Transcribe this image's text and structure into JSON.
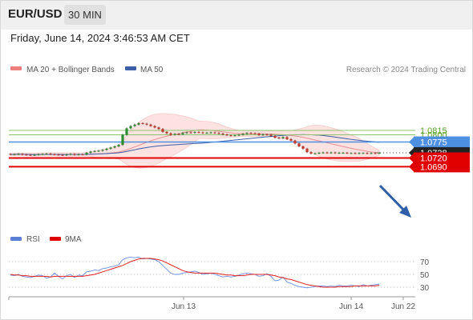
{
  "header": {
    "symbol": "EUR/USD",
    "timeframe": "30 MIN",
    "datetime": "Friday, June 14, 2024 3:46:53 AM CET"
  },
  "legend": {
    "ma20_label": "MA 20 + Bollinger Bands",
    "ma50_label": "MA 50",
    "ma20_color": "#f08080",
    "ma50_color": "#3d5fa8",
    "credit": "Research © 2024 Trading Central"
  },
  "colors": {
    "up_candle": "#2e8b2e",
    "down_candle": "#c0392b",
    "resistance": "#8cc56b",
    "pivot": "#4d8fe0",
    "support": "#e00000",
    "current_box": "#222222",
    "arrow": "#2f5fa8",
    "band_fill": "#fde2e2"
  },
  "chart_data": [
    {
      "type": "candlestick",
      "title": "EUR/USD 30 MIN",
      "x_tick_labels": [
        "Jun 13",
        "Jun 14",
        "Jun 22"
      ],
      "y_range": [
        1.068,
        1.0845
      ],
      "levels": [
        {
          "value": 1.0815,
          "label": "1.0815",
          "kind": "resistance"
        },
        {
          "value": 1.08,
          "label": "1.0800",
          "kind": "resistance"
        },
        {
          "value": 1.0775,
          "label": "1.0775",
          "kind": "pivot"
        },
        {
          "value": 1.0738,
          "label": "1.0738",
          "kind": "current"
        },
        {
          "value": 1.072,
          "label": "1.0720",
          "kind": "support"
        },
        {
          "value": 1.069,
          "label": "1.0690",
          "kind": "support"
        }
      ],
      "close": [
        1.0732,
        1.0733,
        1.0734,
        1.0732,
        1.0731,
        1.073,
        1.0731,
        1.0733,
        1.0734,
        1.0735,
        1.0733,
        1.0732,
        1.0731,
        1.073,
        1.0732,
        1.0734,
        1.0731,
        1.0733,
        1.0732,
        1.0738,
        1.0742,
        1.0744,
        1.0745,
        1.0748,
        1.0752,
        1.0756,
        1.076,
        1.0765,
        1.08,
        1.0822,
        1.083,
        1.0835,
        1.084,
        1.0838,
        1.0835,
        1.083,
        1.0825,
        1.082,
        1.081,
        1.0805,
        1.08,
        1.0803,
        1.0802,
        1.0806,
        1.0808,
        1.0807,
        1.0809,
        1.0808,
        1.0806,
        1.0807,
        1.0808,
        1.0806,
        1.0804,
        1.0801,
        1.0798,
        1.0797,
        1.0798,
        1.08,
        1.0803,
        1.0806,
        1.0805,
        1.0804,
        1.0799,
        1.0801,
        1.08,
        1.0796,
        1.079,
        1.0788,
        1.0792,
        1.0785,
        1.078,
        1.077,
        1.076,
        1.0752,
        1.074,
        1.0735,
        1.0736,
        1.0738,
        1.0739,
        1.0738,
        1.0739,
        1.0737,
        1.0738,
        1.0738,
        1.0737,
        1.0737,
        1.0736,
        1.0737,
        1.0737,
        1.0736,
        1.0737,
        1.0736,
        1.0738
      ]
    },
    {
      "type": "line",
      "title": "RSI",
      "series": [
        {
          "name": "RSI"
        },
        {
          "name": "9MA"
        }
      ],
      "y_range": [
        20,
        80
      ],
      "y_ticks": [
        70,
        50,
        30
      ],
      "rsi": [
        49,
        48,
        50,
        47,
        46,
        45,
        47,
        49,
        48,
        44,
        46,
        52,
        47,
        43,
        48,
        50,
        45,
        49,
        48,
        54,
        55,
        57,
        56,
        59,
        60,
        62,
        63,
        65,
        73,
        76,
        77,
        76,
        77,
        74,
        75,
        74,
        73,
        70,
        64,
        58,
        52,
        50,
        50,
        52,
        53,
        54,
        55,
        53,
        50,
        51,
        52,
        50,
        48,
        46,
        47,
        46,
        47,
        49,
        51,
        52,
        51,
        50,
        47,
        48,
        51,
        47,
        40,
        41,
        46,
        38,
        36,
        33,
        31,
        30,
        29,
        30,
        31,
        32,
        32,
        31,
        32,
        31,
        33,
        32,
        32,
        33,
        32,
        31,
        34,
        32,
        33,
        34,
        35
      ],
      "ma9": [
        50,
        49,
        49,
        48,
        48,
        47,
        47,
        47,
        47,
        47,
        46,
        47,
        47,
        47,
        47,
        47,
        47,
        47,
        47,
        48,
        49,
        50,
        52,
        54,
        56,
        58,
        60,
        62,
        64,
        67,
        70,
        72,
        74,
        75,
        75,
        75,
        74,
        73,
        71,
        68,
        65,
        62,
        59,
        56,
        54,
        53,
        52,
        52,
        52,
        52,
        52,
        52,
        51,
        50,
        49,
        49,
        48,
        48,
        48,
        49,
        50,
        50,
        50,
        50,
        50,
        49,
        48,
        46,
        45,
        43,
        42,
        40,
        38,
        36,
        34,
        33,
        32,
        31,
        30,
        30,
        30,
        30,
        31,
        31,
        31,
        31,
        32,
        32,
        32,
        32,
        32,
        32,
        33
      ]
    }
  ]
}
